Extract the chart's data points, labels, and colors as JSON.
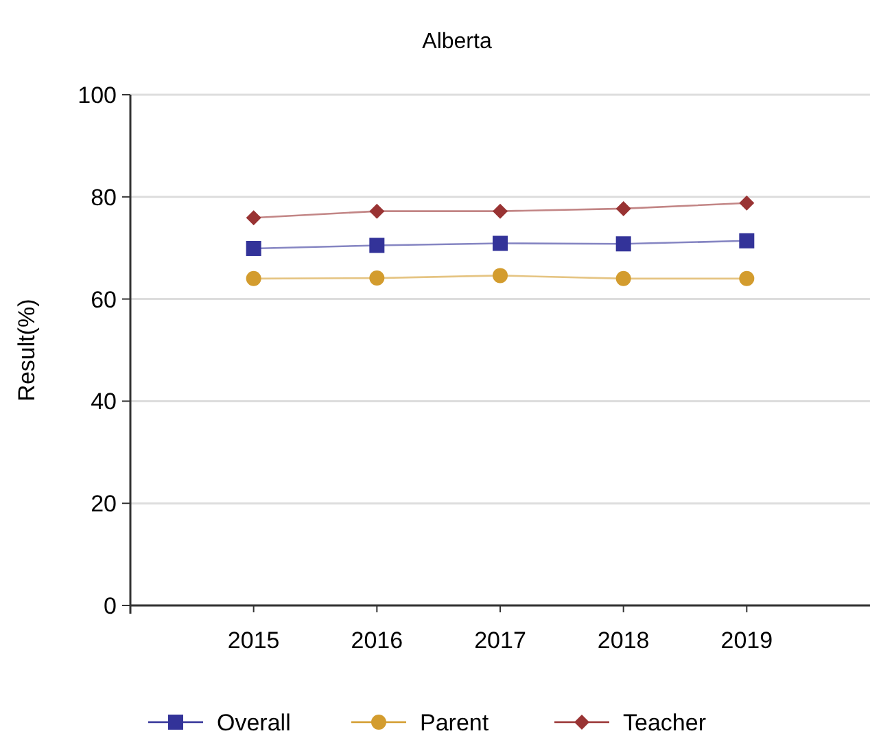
{
  "chart_data": {
    "type": "line",
    "title": "Alberta",
    "ylabel": "Result(%)",
    "categories": [
      "2015",
      "2016",
      "2017",
      "2018",
      "2019"
    ],
    "ylim": [
      0,
      100
    ],
    "yticks": [
      0,
      20,
      40,
      60,
      80,
      100
    ],
    "grid": "y",
    "legend": "bottom",
    "series": [
      {
        "name": "Overall",
        "color": "#333399",
        "marker": "square",
        "values": [
          69.9,
          70.5,
          70.9,
          70.8,
          71.4
        ]
      },
      {
        "name": "Parent",
        "color": "#d39c2e",
        "marker": "circle",
        "values": [
          64.0,
          64.1,
          64.6,
          64.0,
          64.0
        ]
      },
      {
        "name": "Teacher",
        "color": "#993333",
        "marker": "diamond",
        "values": [
          75.9,
          77.2,
          77.2,
          77.7,
          78.8
        ]
      }
    ]
  }
}
